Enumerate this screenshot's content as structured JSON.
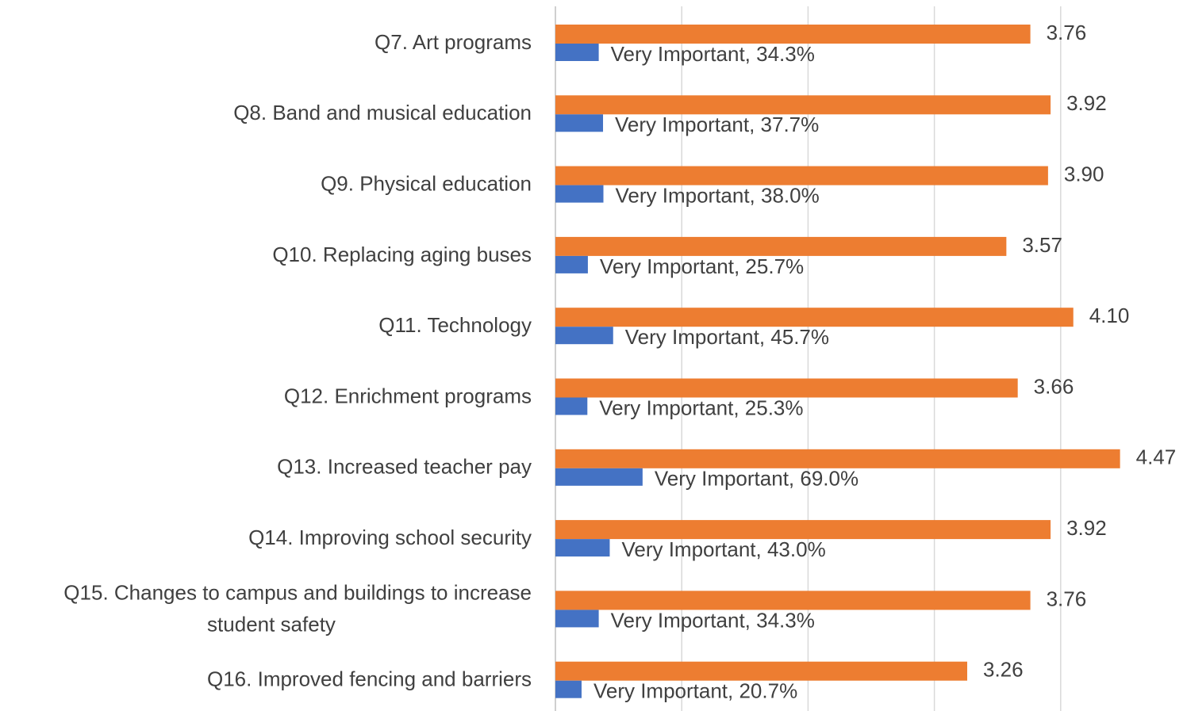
{
  "chart_data": {
    "type": "bar",
    "orientation": "horizontal",
    "categories": [
      "Q7. Art programs",
      "Q8. Band and musical education",
      "Q9. Physical education",
      "Q10. Replacing aging buses",
      "Q11. Technology",
      "Q12. Enrichment programs",
      "Q13. Increased teacher pay",
      "Q14. Improving school security",
      "Q15. Changes to campus and buildings  to increase student safety",
      "Q16. Improved fencing and barriers"
    ],
    "series": [
      {
        "color": "#ed7d31",
        "values": [
          3.76,
          3.92,
          3.9,
          3.57,
          4.1,
          3.66,
          4.47,
          3.92,
          3.76,
          3.26
        ],
        "value_labels": [
          "3.76",
          "3.92",
          "3.90",
          "3.57",
          "4.10",
          "3.66",
          "4.47",
          "3.92",
          "3.76",
          "3.26"
        ]
      },
      {
        "name": "Very Important",
        "color": "#4472c4",
        "values": [
          0.343,
          0.377,
          0.38,
          0.257,
          0.457,
          0.253,
          0.69,
          0.43,
          0.343,
          0.207
        ],
        "value_labels": [
          "Very Important, 34.3%",
          "Very Important, 37.7%",
          "Very Important, 38.0%",
          "Very Important, 25.7%",
          "Very Important, 45.7%",
          "Very Important, 25.3%",
          "Very Important, 69.0%",
          "Very Important, 43.0%",
          "Very Important, 34.3%",
          "Very Important, 20.7%"
        ]
      }
    ],
    "xlim": [
      0,
      5
    ],
    "xticks": [
      0,
      1,
      2,
      3,
      4
    ],
    "grid": true
  }
}
